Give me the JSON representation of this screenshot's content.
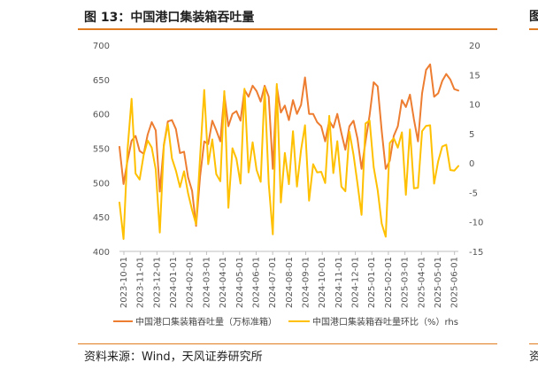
{
  "header": {
    "title": "图 13：中国港口集装箱吞吐量",
    "right_edge_glyph": "图"
  },
  "footer": {
    "source": "资料来源：Wind，天风证券研究所",
    "right_edge_glyph": "资"
  },
  "colors": {
    "accent": "#e07b20",
    "series1": "#ed7d31",
    "series2": "#ffc000"
  },
  "chart_data": {
    "type": "line",
    "title": "中国港口集装箱吞吐量",
    "y_left": {
      "min": 400,
      "max": 700,
      "ticks": [
        400,
        450,
        500,
        550,
        600,
        650,
        700
      ]
    },
    "y_right": {
      "min": -15,
      "max": 20,
      "ticks": [
        -15,
        -10,
        -5,
        0,
        5,
        10,
        15,
        20
      ]
    },
    "x_labels": [
      "2023-10-01",
      "2023-11-01",
      "2023-12-01",
      "2024-01-01",
      "2024-02-01",
      "2024-03-01",
      "2024-04-01",
      "2024-05-01",
      "2024-06-01",
      "2024-07-01",
      "2024-08-01",
      "2024-09-01",
      "2024-10-01",
      "2024-11-01",
      "2024-12-01",
      "2025-01-01",
      "2025-02-01",
      "2025-03-01",
      "2025-04-01",
      "2025-05-01",
      "2025-06-01"
    ],
    "series": [
      {
        "name": "中国港口集装箱吞吐量（万标准箱）",
        "axis": "left",
        "values": [
          552,
          498,
          532,
          561,
          568,
          546,
          542,
          570,
          588,
          576,
          487,
          555,
          589,
          591,
          578,
          543,
          545,
          508,
          488,
          437,
          510,
          560,
          556,
          590,
          576,
          560,
          628,
          582,
          600,
          604,
          590,
          635,
          625,
          641,
          633,
          618,
          641,
          625,
          520,
          640,
          602,
          612,
          591,
          620,
          600,
          613,
          653,
          600,
          600,
          588,
          582,
          560,
          590,
          580,
          600,
          572,
          548,
          582,
          590,
          564,
          520,
          560,
          598,
          646,
          640,
          575,
          520,
          532,
          568,
          582,
          620,
          610,
          628,
          592,
          560,
          630,
          664,
          672,
          625,
          630,
          648,
          658,
          650,
          636,
          634
        ]
      },
      {
        "name": "中国港口集装箱吞吐量环比（%）rhs",
        "axis": "right",
        "values": [
          -6.7,
          -12.9,
          2.2,
          10.9,
          -1.8,
          -2.8,
          1.4,
          3.8,
          2.6,
          -1.1,
          -11.8,
          3.0,
          6.6,
          0.8,
          -1.3,
          -4.1,
          -1.4,
          -5.1,
          -8.0,
          -10.4,
          1.2,
          12.4,
          -0.2,
          4.0,
          -1.9,
          -3.1,
          12.2,
          -7.6,
          2.5,
          0.7,
          -3.5,
          12.6,
          -1.6,
          3.5,
          -1.2,
          -3.2,
          12.8,
          -3.5,
          -12.1,
          13.4,
          -6.7,
          1.7,
          -3.6,
          5.4,
          -4.0,
          2.2,
          6.4,
          -6.4,
          -0.2,
          -1.6,
          -1.5,
          -3.4,
          8.0,
          -1.7,
          3.7,
          -4.0,
          -4.8,
          5.3,
          1.4,
          -3.5,
          -8.8,
          6.7,
          7.2,
          -0.7,
          -4.6,
          -10.3,
          -12.5,
          3.4,
          4.2,
          2.6,
          5.2,
          -5.4,
          5.7,
          -4.3,
          -4.2,
          5.4,
          6.3,
          6.4,
          -3.5,
          0.3,
          2.8,
          3.1,
          -1.2,
          -1.3,
          -0.5
        ]
      }
    ],
    "legend": {
      "placement": "bottom",
      "rhs_label": "rhs"
    }
  }
}
